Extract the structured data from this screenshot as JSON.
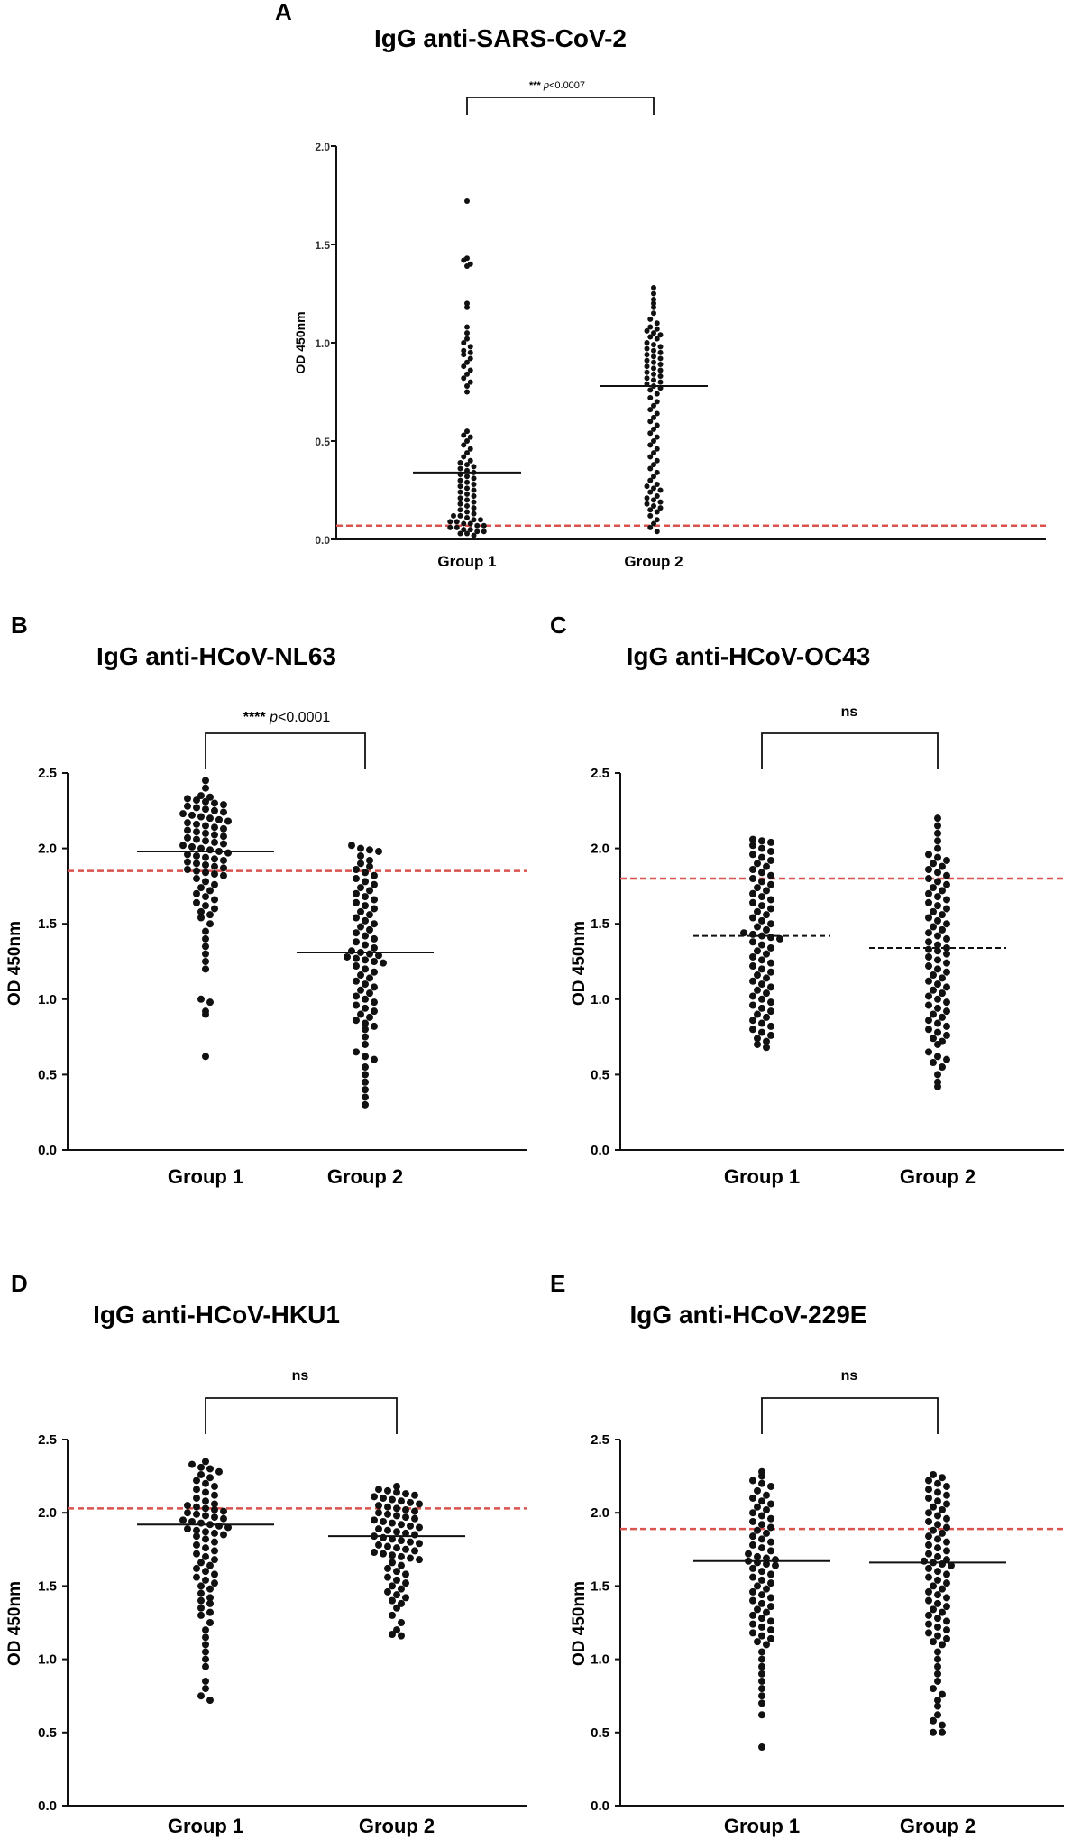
{
  "figure": {
    "colors": {
      "dot": "#111111",
      "median": "#111111",
      "cutoff": "#d9534f",
      "axis": "#111111"
    }
  },
  "chart_data": [
    {
      "type": "scatter",
      "panel": "A",
      "title": "IgG anti-SARS-CoV-2",
      "xlabel": "",
      "ylabel": "OD 450nm",
      "categories": [
        "Group 1",
        "Group 2"
      ],
      "ylim": [
        0.0,
        2.0
      ],
      "yticks": [
        "0.0",
        "0.5",
        "1.0",
        "1.5",
        "2.0"
      ],
      "median_style": "solid",
      "medians": [
        0.34,
        0.78
      ],
      "cutoff": 0.07,
      "significance": {
        "stars": "***",
        "p_prefix": "p",
        "p_value": "<0.0007"
      },
      "series": [
        {
          "name": "Group 1",
          "values": [
            1.72,
            1.43,
            1.42,
            1.4,
            1.39,
            1.2,
            1.18,
            1.08,
            1.05,
            1.02,
            1.0,
            0.98,
            0.96,
            0.95,
            0.94,
            0.92,
            0.9,
            0.88,
            0.86,
            0.84,
            0.82,
            0.8,
            0.78,
            0.75,
            0.55,
            0.53,
            0.52,
            0.5,
            0.48,
            0.46,
            0.44,
            0.42,
            0.4,
            0.39,
            0.38,
            0.37,
            0.36,
            0.35,
            0.34,
            0.33,
            0.32,
            0.31,
            0.3,
            0.29,
            0.28,
            0.27,
            0.26,
            0.25,
            0.24,
            0.23,
            0.22,
            0.21,
            0.2,
            0.19,
            0.18,
            0.17,
            0.16,
            0.15,
            0.14,
            0.13,
            0.12,
            0.12,
            0.11,
            0.1,
            0.1,
            0.09,
            0.09,
            0.08,
            0.08,
            0.07,
            0.07,
            0.06,
            0.06,
            0.05,
            0.05,
            0.04,
            0.04,
            0.03,
            0.03,
            0.02
          ]
        },
        {
          "name": "Group 2",
          "values": [
            1.28,
            1.25,
            1.22,
            1.2,
            1.18,
            1.15,
            1.12,
            1.1,
            1.08,
            1.07,
            1.06,
            1.05,
            1.04,
            1.03,
            1.02,
            1.0,
            0.99,
            0.98,
            0.97,
            0.96,
            0.95,
            0.94,
            0.93,
            0.92,
            0.91,
            0.9,
            0.89,
            0.88,
            0.87,
            0.86,
            0.85,
            0.84,
            0.83,
            0.82,
            0.81,
            0.8,
            0.79,
            0.78,
            0.77,
            0.76,
            0.74,
            0.72,
            0.7,
            0.68,
            0.66,
            0.64,
            0.62,
            0.6,
            0.58,
            0.56,
            0.54,
            0.52,
            0.5,
            0.48,
            0.46,
            0.44,
            0.42,
            0.4,
            0.38,
            0.36,
            0.34,
            0.32,
            0.3,
            0.28,
            0.27,
            0.26,
            0.25,
            0.24,
            0.22,
            0.21,
            0.2,
            0.19,
            0.18,
            0.17,
            0.16,
            0.15,
            0.14,
            0.12,
            0.1,
            0.08,
            0.06,
            0.04
          ]
        }
      ]
    },
    {
      "type": "scatter",
      "panel": "B",
      "title": "IgG anti-HCoV-NL63",
      "xlabel": "",
      "ylabel": "OD 450nm",
      "categories": [
        "Group 1",
        "Group 2"
      ],
      "ylim": [
        0.0,
        2.5
      ],
      "yticks": [
        "0.0",
        "0.5",
        "1.0",
        "1.5",
        "2.0",
        "2.5"
      ],
      "median_style": "solid",
      "medians": [
        1.98,
        1.31
      ],
      "cutoff": 1.85,
      "significance": {
        "stars": "****",
        "p_prefix": "p",
        "p_value": "<0.0001"
      },
      "series": [
        {
          "name": "Group 1",
          "values": [
            2.45,
            2.4,
            2.35,
            2.34,
            2.33,
            2.32,
            2.31,
            2.3,
            2.29,
            2.28,
            2.27,
            2.26,
            2.25,
            2.24,
            2.23,
            2.22,
            2.21,
            2.2,
            2.19,
            2.18,
            2.17,
            2.16,
            2.15,
            2.14,
            2.13,
            2.12,
            2.11,
            2.1,
            2.09,
            2.08,
            2.07,
            2.06,
            2.05,
            2.04,
            2.03,
            2.02,
            2.01,
            2.0,
            1.99,
            1.98,
            1.97,
            1.96,
            1.95,
            1.94,
            1.93,
            1.92,
            1.91,
            1.9,
            1.89,
            1.88,
            1.87,
            1.86,
            1.85,
            1.84,
            1.83,
            1.82,
            1.8,
            1.78,
            1.76,
            1.74,
            1.72,
            1.7,
            1.68,
            1.66,
            1.64,
            1.62,
            1.6,
            1.58,
            1.56,
            1.54,
            1.5,
            1.45,
            1.4,
            1.35,
            1.3,
            1.25,
            1.2,
            1.0,
            0.98,
            0.92,
            0.9,
            0.62
          ]
        },
        {
          "name": "Group 2",
          "values": [
            2.02,
            2.0,
            1.99,
            1.98,
            1.95,
            1.92,
            1.9,
            1.88,
            1.86,
            1.84,
            1.82,
            1.8,
            1.78,
            1.76,
            1.74,
            1.72,
            1.7,
            1.68,
            1.66,
            1.64,
            1.62,
            1.6,
            1.58,
            1.56,
            1.54,
            1.52,
            1.5,
            1.48,
            1.46,
            1.44,
            1.42,
            1.4,
            1.38,
            1.36,
            1.34,
            1.32,
            1.31,
            1.3,
            1.29,
            1.28,
            1.27,
            1.26,
            1.25,
            1.24,
            1.22,
            1.2,
            1.18,
            1.16,
            1.14,
            1.12,
            1.1,
            1.08,
            1.06,
            1.04,
            1.02,
            1.0,
            0.98,
            0.96,
            0.94,
            0.92,
            0.9,
            0.88,
            0.86,
            0.84,
            0.82,
            0.8,
            0.75,
            0.7,
            0.65,
            0.62,
            0.6,
            0.55,
            0.5,
            0.45,
            0.4,
            0.35,
            0.3
          ]
        }
      ]
    },
    {
      "type": "scatter",
      "panel": "C",
      "title": "IgG anti-HCoV-OC43",
      "xlabel": "",
      "ylabel": "OD 450nm",
      "categories": [
        "Group 1",
        "Group 2"
      ],
      "ylim": [
        0.0,
        2.5
      ],
      "yticks": [
        "0.0",
        "0.5",
        "1.0",
        "1.5",
        "2.0",
        "2.5"
      ],
      "median_style": "dashed",
      "medians": [
        1.42,
        1.34
      ],
      "cutoff": 1.8,
      "significance": {
        "label": "ns"
      },
      "series": [
        {
          "name": "Group 1",
          "values": [
            2.06,
            2.05,
            2.04,
            2.02,
            2.0,
            1.98,
            1.96,
            1.94,
            1.92,
            1.9,
            1.88,
            1.86,
            1.84,
            1.82,
            1.8,
            1.78,
            1.76,
            1.74,
            1.72,
            1.7,
            1.68,
            1.66,
            1.64,
            1.62,
            1.6,
            1.58,
            1.56,
            1.54,
            1.52,
            1.5,
            1.48,
            1.46,
            1.44,
            1.43,
            1.42,
            1.41,
            1.4,
            1.38,
            1.36,
            1.34,
            1.32,
            1.3,
            1.28,
            1.26,
            1.24,
            1.22,
            1.2,
            1.18,
            1.16,
            1.14,
            1.12,
            1.1,
            1.08,
            1.06,
            1.04,
            1.02,
            1.0,
            0.98,
            0.96,
            0.94,
            0.92,
            0.9,
            0.88,
            0.86,
            0.84,
            0.82,
            0.8,
            0.78,
            0.76,
            0.74,
            0.72,
            0.7,
            0.68
          ]
        },
        {
          "name": "Group 2",
          "values": [
            2.2,
            2.15,
            2.1,
            2.05,
            2.0,
            1.96,
            1.94,
            1.92,
            1.9,
            1.88,
            1.86,
            1.84,
            1.82,
            1.8,
            1.78,
            1.76,
            1.74,
            1.72,
            1.7,
            1.68,
            1.66,
            1.64,
            1.62,
            1.6,
            1.58,
            1.56,
            1.54,
            1.52,
            1.5,
            1.48,
            1.46,
            1.44,
            1.42,
            1.4,
            1.38,
            1.36,
            1.34,
            1.33,
            1.32,
            1.3,
            1.28,
            1.26,
            1.24,
            1.22,
            1.2,
            1.18,
            1.16,
            1.14,
            1.12,
            1.1,
            1.08,
            1.06,
            1.04,
            1.02,
            1.0,
            0.98,
            0.96,
            0.94,
            0.92,
            0.9,
            0.88,
            0.86,
            0.84,
            0.82,
            0.8,
            0.78,
            0.76,
            0.74,
            0.72,
            0.7,
            0.65,
            0.62,
            0.6,
            0.58,
            0.55,
            0.5,
            0.45,
            0.42
          ]
        }
      ]
    },
    {
      "type": "scatter",
      "panel": "D",
      "title": "IgG anti-HCoV-HKU1",
      "xlabel": "",
      "ylabel": "OD 450nm",
      "categories": [
        "Group 1",
        "Group 2"
      ],
      "ylim": [
        0.0,
        2.5
      ],
      "yticks": [
        "0.0",
        "0.5",
        "1.0",
        "1.5",
        "2.0",
        "2.5"
      ],
      "median_style": "solid",
      "medians": [
        1.92,
        1.84
      ],
      "cutoff": 2.03,
      "significance": {
        "label": "ns"
      },
      "series": [
        {
          "name": "Group 1",
          "values": [
            2.35,
            2.33,
            2.31,
            2.3,
            2.28,
            2.26,
            2.24,
            2.22,
            2.2,
            2.18,
            2.16,
            2.14,
            2.12,
            2.1,
            2.08,
            2.06,
            2.05,
            2.04,
            2.03,
            2.02,
            2.01,
            2.0,
            1.99,
            1.98,
            1.97,
            1.96,
            1.95,
            1.94,
            1.93,
            1.92,
            1.91,
            1.9,
            1.89,
            1.88,
            1.87,
            1.86,
            1.85,
            1.84,
            1.82,
            1.8,
            1.78,
            1.76,
            1.74,
            1.72,
            1.7,
            1.68,
            1.66,
            1.64,
            1.62,
            1.6,
            1.58,
            1.56,
            1.54,
            1.52,
            1.5,
            1.48,
            1.45,
            1.42,
            1.4,
            1.38,
            1.35,
            1.32,
            1.3,
            1.25,
            1.2,
            1.15,
            1.1,
            1.05,
            1.0,
            0.95,
            0.85,
            0.8,
            0.75,
            0.72
          ]
        },
        {
          "name": "Group 2",
          "values": [
            2.18,
            2.16,
            2.15,
            2.14,
            2.13,
            2.12,
            2.11,
            2.1,
            2.09,
            2.08,
            2.07,
            2.06,
            2.05,
            2.04,
            2.03,
            2.02,
            2.01,
            2.0,
            1.99,
            1.98,
            1.97,
            1.96,
            1.95,
            1.94,
            1.93,
            1.92,
            1.91,
            1.9,
            1.89,
            1.88,
            1.87,
            1.86,
            1.85,
            1.84,
            1.83,
            1.82,
            1.81,
            1.8,
            1.79,
            1.78,
            1.77,
            1.76,
            1.75,
            1.74,
            1.73,
            1.72,
            1.71,
            1.7,
            1.69,
            1.68,
            1.66,
            1.64,
            1.62,
            1.6,
            1.58,
            1.56,
            1.54,
            1.52,
            1.5,
            1.48,
            1.46,
            1.44,
            1.42,
            1.4,
            1.38,
            1.35,
            1.3,
            1.25,
            1.2,
            1.17,
            1.16
          ]
        }
      ]
    },
    {
      "type": "scatter",
      "panel": "E",
      "title": "IgG anti-HCoV-229E",
      "xlabel": "",
      "ylabel": "OD 450nm",
      "categories": [
        "Group 1",
        "Group 2"
      ],
      "ylim": [
        0.0,
        2.5
      ],
      "yticks": [
        "0.0",
        "0.5",
        "1.0",
        "1.5",
        "2.0",
        "2.5"
      ],
      "median_style": "solid",
      "medians": [
        1.67,
        1.66
      ],
      "cutoff": 1.89,
      "significance": {
        "label": "ns"
      },
      "series": [
        {
          "name": "Group 1",
          "values": [
            2.28,
            2.25,
            2.22,
            2.2,
            2.18,
            2.15,
            2.12,
            2.1,
            2.08,
            2.06,
            2.04,
            2.02,
            2.0,
            1.98,
            1.96,
            1.94,
            1.92,
            1.9,
            1.88,
            1.86,
            1.84,
            1.82,
            1.8,
            1.78,
            1.76,
            1.74,
            1.72,
            1.7,
            1.69,
            1.68,
            1.67,
            1.66,
            1.65,
            1.64,
            1.62,
            1.6,
            1.58,
            1.56,
            1.54,
            1.52,
            1.5,
            1.48,
            1.46,
            1.44,
            1.42,
            1.4,
            1.38,
            1.36,
            1.34,
            1.32,
            1.3,
            1.28,
            1.26,
            1.24,
            1.22,
            1.2,
            1.18,
            1.16,
            1.14,
            1.12,
            1.1,
            1.05,
            1.0,
            0.95,
            0.9,
            0.85,
            0.8,
            0.75,
            0.7,
            0.62,
            0.4
          ]
        },
        {
          "name": "Group 2",
          "values": [
            2.26,
            2.24,
            2.22,
            2.2,
            2.18,
            2.16,
            2.14,
            2.12,
            2.1,
            2.08,
            2.06,
            2.04,
            2.02,
            2.0,
            1.98,
            1.96,
            1.94,
            1.92,
            1.9,
            1.88,
            1.86,
            1.84,
            1.82,
            1.8,
            1.78,
            1.76,
            1.74,
            1.72,
            1.7,
            1.68,
            1.67,
            1.66,
            1.65,
            1.64,
            1.62,
            1.6,
            1.58,
            1.56,
            1.54,
            1.52,
            1.5,
            1.48,
            1.46,
            1.44,
            1.42,
            1.4,
            1.38,
            1.36,
            1.34,
            1.32,
            1.3,
            1.28,
            1.26,
            1.24,
            1.22,
            1.2,
            1.18,
            1.16,
            1.14,
            1.12,
            1.1,
            1.05,
            1.0,
            0.95,
            0.9,
            0.85,
            0.8,
            0.76,
            0.72,
            0.68,
            0.62,
            0.58,
            0.55,
            0.5,
            0.5
          ]
        }
      ]
    }
  ]
}
